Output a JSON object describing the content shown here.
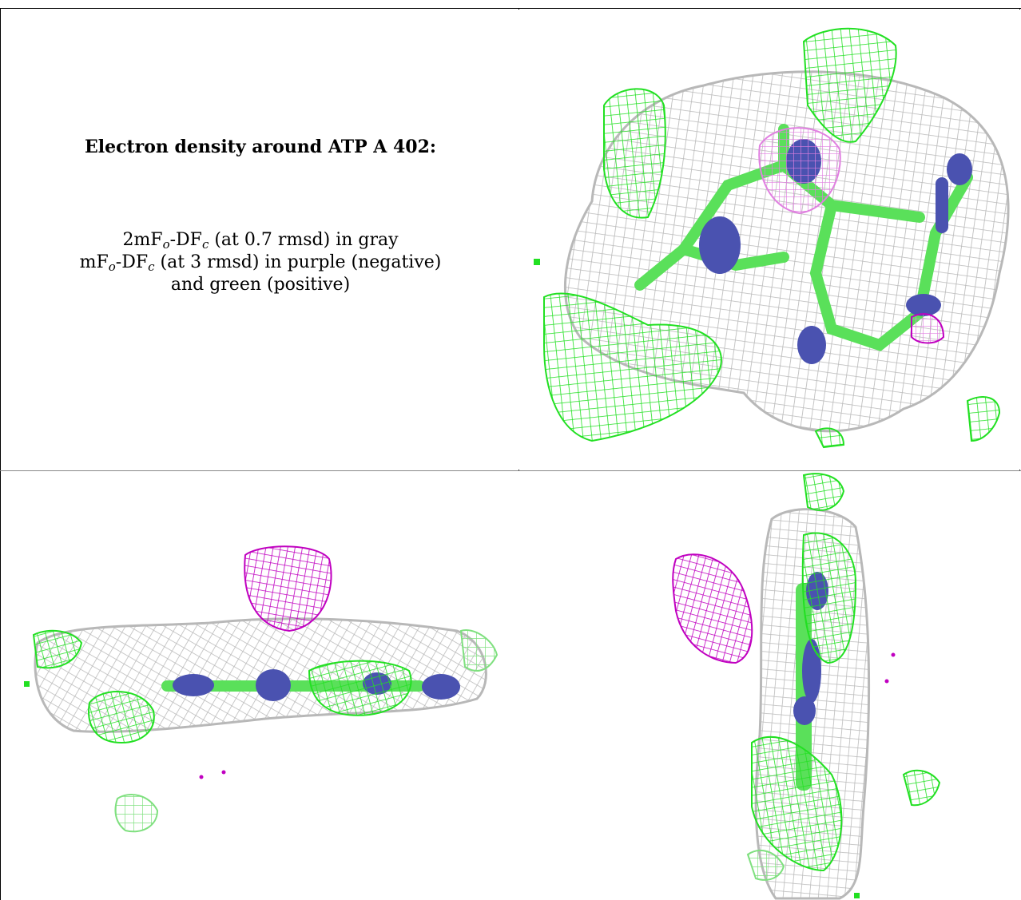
{
  "caption": {
    "title": "Electron density around ATP A 402:",
    "line1": {
      "pre": "2mF",
      "s1": "o",
      "mid": "-DF",
      "s2": "c",
      "post": " (at 0.7 rmsd) in gray"
    },
    "line2": {
      "pre": "mF",
      "s1": "o",
      "mid": "-DF",
      "s2": "c",
      "post": " (at 3 rmsd) in purple (negative)"
    },
    "line3": "and green (positive)"
  },
  "colors": {
    "gray_mesh": "#b8b8b8",
    "green_mesh": "#22e022",
    "green_light": "#7fe07f",
    "purple_mesh": "#c000c0",
    "pink_mesh": "#e080e0",
    "atom_blue": "#4a52b0",
    "bond_green": "#5ae05a",
    "rule": "#000000"
  },
  "views": [
    {
      "name": "view-top-right"
    },
    {
      "name": "view-bottom-left"
    },
    {
      "name": "view-bottom-right"
    }
  ]
}
